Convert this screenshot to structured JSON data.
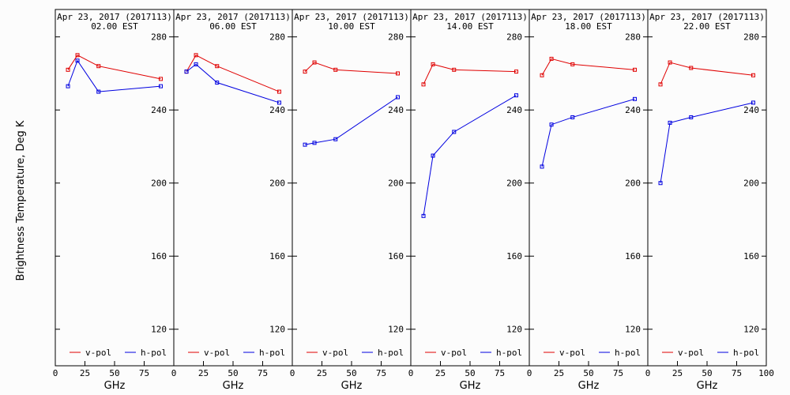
{
  "chart_data": {
    "type": "line",
    "ylabel": "Brightness Temperature, Deg K",
    "xlabel": "GHz",
    "xlim": [
      0,
      100
    ],
    "ylim": [
      100,
      295
    ],
    "xticks": [
      0,
      25,
      50,
      75,
      100
    ],
    "yticks": [
      120,
      160,
      200,
      240,
      280
    ],
    "x_tick_labels_by_panel": [
      [
        "0",
        "25",
        "50",
        "75"
      ],
      [
        "0",
        "25",
        "50",
        "75"
      ],
      [
        "0",
        "25",
        "50",
        "75"
      ],
      [
        "0",
        "25",
        "50",
        "75"
      ],
      [
        "0",
        "25",
        "50",
        "75"
      ],
      [
        "0",
        "25",
        "50",
        "75",
        "100"
      ]
    ],
    "x": [
      10.7,
      18.7,
      36.5,
      89.0
    ],
    "series_style": [
      {
        "name": "v-pol",
        "color": "#e00000"
      },
      {
        "name": "h-pol",
        "color": "#0000e0"
      }
    ],
    "panels": [
      {
        "date": "Apr 23, 2017 (2017113)",
        "time": "02.00 EST",
        "series": [
          {
            "name": "v-pol",
            "values": [
              262,
              270,
              264,
              257
            ]
          },
          {
            "name": "h-pol",
            "values": [
              253,
              267,
              250,
              253
            ]
          }
        ]
      },
      {
        "date": "Apr 23, 2017 (2017113)",
        "time": "06.00 EST",
        "series": [
          {
            "name": "v-pol",
            "values": [
              261,
              270,
              264,
              250
            ]
          },
          {
            "name": "h-pol",
            "values": [
              261,
              265,
              255,
              244
            ]
          }
        ]
      },
      {
        "date": "Apr 23, 2017 (2017113)",
        "time": "10.00 EST",
        "series": [
          {
            "name": "v-pol",
            "values": [
              261,
              266,
              262,
              260
            ]
          },
          {
            "name": "h-pol",
            "values": [
              221,
              222,
              224,
              247
            ]
          }
        ]
      },
      {
        "date": "Apr 23, 2017 (2017113)",
        "time": "14.00 EST",
        "series": [
          {
            "name": "v-pol",
            "values": [
              254,
              265,
              262,
              261
            ]
          },
          {
            "name": "h-pol",
            "values": [
              182,
              215,
              228,
              248
            ]
          }
        ]
      },
      {
        "date": "Apr 23, 2017 (2017113)",
        "time": "18.00 EST",
        "series": [
          {
            "name": "v-pol",
            "values": [
              259,
              268,
              265,
              262
            ]
          },
          {
            "name": "h-pol",
            "values": [
              209,
              232,
              236,
              246
            ]
          }
        ]
      },
      {
        "date": "Apr 23, 2017 (2017113)",
        "time": "22.00 EST",
        "series": [
          {
            "name": "v-pol",
            "values": [
              254,
              266,
              263,
              259
            ]
          },
          {
            "name": "h-pol",
            "values": [
              200,
              233,
              236,
              244
            ]
          }
        ]
      }
    ],
    "legend": {
      "placement": "bottom",
      "entries": [
        "v-pol",
        "h-pol"
      ]
    },
    "grid": false
  }
}
